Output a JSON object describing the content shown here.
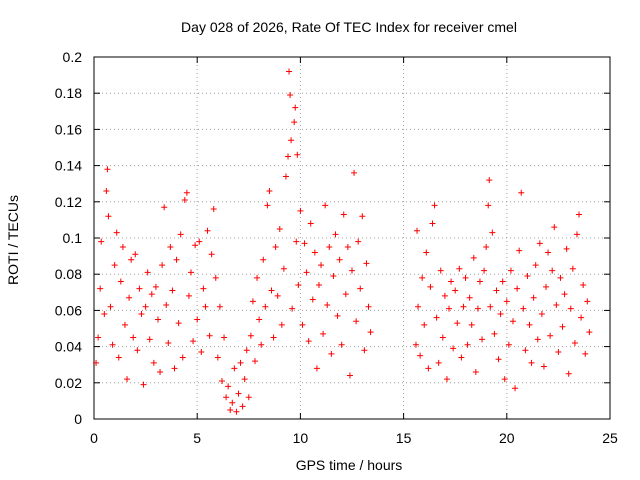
{
  "chart_data": {
    "type": "scatter",
    "title": "Day 028 of 2026, Rate Of TEC Index for receiver cmel",
    "xlabel": "GPS time / hours",
    "ylabel": "ROTI / TECUs",
    "xlim": [
      0,
      25
    ],
    "ylim": [
      0,
      0.2
    ],
    "x_ticks": [
      0,
      5,
      10,
      15,
      20,
      25
    ],
    "y_ticks": [
      0,
      0.02,
      0.04,
      0.06,
      0.08,
      0.1,
      0.12,
      0.14,
      0.16,
      0.18,
      0.2
    ],
    "x_tick_labels": [
      "0",
      "5",
      "10",
      "15",
      "20",
      "25"
    ],
    "y_tick_labels": [
      "0",
      "0.02",
      "0.04",
      "0.06",
      "0.08",
      "0.1",
      "0.12",
      "0.14",
      "0.16",
      "0.18",
      "0.2"
    ],
    "grid": true,
    "marker": "+",
    "series": [
      {
        "name": "ROTI",
        "color": "#ff0000",
        "note": "dense scatter; data gap from ~13.5 h to ~15.5 h",
        "points": [
          [
            0.1,
            0.031
          ],
          [
            0.2,
            0.045
          ],
          [
            0.3,
            0.072
          ],
          [
            0.35,
            0.098
          ],
          [
            0.5,
            0.058
          ],
          [
            0.6,
            0.126
          ],
          [
            0.65,
            0.138
          ],
          [
            0.7,
            0.112
          ],
          [
            0.8,
            0.062
          ],
          [
            0.9,
            0.041
          ],
          [
            1.0,
            0.085
          ],
          [
            1.1,
            0.103
          ],
          [
            1.2,
            0.034
          ],
          [
            1.3,
            0.076
          ],
          [
            1.4,
            0.095
          ],
          [
            1.5,
            0.052
          ],
          [
            1.6,
            0.022
          ],
          [
            1.7,
            0.067
          ],
          [
            1.8,
            0.088
          ],
          [
            1.9,
            0.045
          ],
          [
            2.0,
            0.091
          ],
          [
            2.1,
            0.038
          ],
          [
            2.2,
            0.072
          ],
          [
            2.3,
            0.058
          ],
          [
            2.4,
            0.019
          ],
          [
            2.5,
            0.062
          ],
          [
            2.6,
            0.081
          ],
          [
            2.7,
            0.044
          ],
          [
            2.8,
            0.069
          ],
          [
            2.9,
            0.031
          ],
          [
            3.0,
            0.073
          ],
          [
            3.1,
            0.055
          ],
          [
            3.2,
            0.026
          ],
          [
            3.3,
            0.085
          ],
          [
            3.4,
            0.117
          ],
          [
            3.5,
            0.063
          ],
          [
            3.6,
            0.042
          ],
          [
            3.7,
            0.095
          ],
          [
            3.8,
            0.071
          ],
          [
            3.9,
            0.028
          ],
          [
            4.0,
            0.088
          ],
          [
            4.1,
            0.053
          ],
          [
            4.2,
            0.102
          ],
          [
            4.3,
            0.034
          ],
          [
            4.4,
            0.121
          ],
          [
            4.5,
            0.125
          ],
          [
            4.6,
            0.068
          ],
          [
            4.7,
            0.081
          ],
          [
            4.8,
            0.043
          ],
          [
            4.9,
            0.096
          ],
          [
            5.0,
            0.055
          ],
          [
            5.1,
            0.098
          ],
          [
            5.2,
            0.037
          ],
          [
            5.3,
            0.072
          ],
          [
            5.4,
            0.062
          ],
          [
            5.5,
            0.104
          ],
          [
            5.6,
            0.046
          ],
          [
            5.7,
            0.091
          ],
          [
            5.8,
            0.116
          ],
          [
            5.9,
            0.078
          ],
          [
            6.0,
            0.034
          ],
          [
            6.1,
            0.062
          ],
          [
            6.2,
            0.021
          ],
          [
            6.3,
            0.045
          ],
          [
            6.4,
            0.012
          ],
          [
            6.5,
            0.018
          ],
          [
            6.6,
            0.005
          ],
          [
            6.7,
            0.009
          ],
          [
            6.8,
            0.028
          ],
          [
            6.9,
            0.004
          ],
          [
            7.0,
            0.014
          ],
          [
            7.1,
            0.031
          ],
          [
            7.2,
            0.007
          ],
          [
            7.3,
            0.022
          ],
          [
            7.4,
            0.038
          ],
          [
            7.5,
            0.012
          ],
          [
            7.6,
            0.046
          ],
          [
            7.7,
            0.065
          ],
          [
            7.8,
            0.032
          ],
          [
            7.9,
            0.078
          ],
          [
            8.0,
            0.055
          ],
          [
            8.1,
            0.041
          ],
          [
            8.2,
            0.088
          ],
          [
            8.3,
            0.062
          ],
          [
            8.4,
            0.118
          ],
          [
            8.5,
            0.126
          ],
          [
            8.6,
            0.071
          ],
          [
            8.7,
            0.045
          ],
          [
            8.8,
            0.095
          ],
          [
            8.9,
            0.068
          ],
          [
            9.0,
            0.105
          ],
          [
            9.1,
            0.052
          ],
          [
            9.2,
            0.083
          ],
          [
            9.3,
            0.134
          ],
          [
            9.4,
            0.145
          ],
          [
            9.45,
            0.192
          ],
          [
            9.5,
            0.179
          ],
          [
            9.55,
            0.154
          ],
          [
            9.6,
            0.061
          ],
          [
            9.7,
            0.164
          ],
          [
            9.75,
            0.172
          ],
          [
            9.8,
            0.098
          ],
          [
            9.85,
            0.146
          ],
          [
            9.9,
            0.074
          ],
          [
            10.0,
            0.115
          ],
          [
            10.1,
            0.052
          ],
          [
            10.2,
            0.097
          ],
          [
            10.3,
            0.081
          ],
          [
            10.4,
            0.043
          ],
          [
            10.5,
            0.108
          ],
          [
            10.6,
            0.066
          ],
          [
            10.7,
            0.092
          ],
          [
            10.8,
            0.028
          ],
          [
            10.9,
            0.074
          ],
          [
            11.0,
            0.085
          ],
          [
            11.1,
            0.047
          ],
          [
            11.2,
            0.118
          ],
          [
            11.3,
            0.063
          ],
          [
            11.4,
            0.095
          ],
          [
            11.5,
            0.036
          ],
          [
            11.6,
            0.079
          ],
          [
            11.7,
            0.102
          ],
          [
            11.8,
            0.057
          ],
          [
            11.9,
            0.088
          ],
          [
            12.0,
            0.041
          ],
          [
            12.1,
            0.113
          ],
          [
            12.2,
            0.069
          ],
          [
            12.3,
            0.095
          ],
          [
            12.4,
            0.024
          ],
          [
            12.5,
            0.082
          ],
          [
            12.6,
            0.136
          ],
          [
            12.7,
            0.054
          ],
          [
            12.8,
            0.098
          ],
          [
            12.9,
            0.072
          ],
          [
            13.0,
            0.112
          ],
          [
            13.1,
            0.038
          ],
          [
            13.2,
            0.086
          ],
          [
            13.3,
            0.062
          ],
          [
            13.4,
            0.048
          ],
          [
            15.6,
            0.041
          ],
          [
            15.65,
            0.104
          ],
          [
            15.7,
            0.062
          ],
          [
            15.8,
            0.035
          ],
          [
            15.9,
            0.078
          ],
          [
            16.0,
            0.052
          ],
          [
            16.1,
            0.092
          ],
          [
            16.2,
            0.028
          ],
          [
            16.3,
            0.073
          ],
          [
            16.4,
            0.108
          ],
          [
            16.5,
            0.118
          ],
          [
            16.6,
            0.056
          ],
          [
            16.7,
            0.031
          ],
          [
            16.8,
            0.082
          ],
          [
            16.9,
            0.045
          ],
          [
            17.0,
            0.068
          ],
          [
            17.1,
            0.022
          ],
          [
            17.2,
            0.061
          ],
          [
            17.3,
            0.076
          ],
          [
            17.4,
            0.039
          ],
          [
            17.5,
            0.071
          ],
          [
            17.6,
            0.053
          ],
          [
            17.7,
            0.083
          ],
          [
            17.8,
            0.034
          ],
          [
            17.9,
            0.062
          ],
          [
            18.0,
            0.078
          ],
          [
            18.1,
            0.041
          ],
          [
            18.2,
            0.067
          ],
          [
            18.3,
            0.052
          ],
          [
            18.4,
            0.089
          ],
          [
            18.5,
            0.026
          ],
          [
            18.6,
            0.061
          ],
          [
            18.7,
            0.076
          ],
          [
            18.8,
            0.044
          ],
          [
            18.9,
            0.082
          ],
          [
            19.0,
            0.095
          ],
          [
            19.1,
            0.118
          ],
          [
            19.15,
            0.132
          ],
          [
            19.2,
            0.062
          ],
          [
            19.3,
            0.103
          ],
          [
            19.4,
            0.047
          ],
          [
            19.5,
            0.071
          ],
          [
            19.6,
            0.033
          ],
          [
            19.7,
            0.058
          ],
          [
            19.8,
            0.076
          ],
          [
            19.9,
            0.022
          ],
          [
            20.0,
            0.065
          ],
          [
            20.1,
            0.041
          ],
          [
            20.2,
            0.082
          ],
          [
            20.3,
            0.054
          ],
          [
            20.4,
            0.017
          ],
          [
            20.5,
            0.072
          ],
          [
            20.6,
            0.093
          ],
          [
            20.7,
            0.125
          ],
          [
            20.8,
            0.061
          ],
          [
            20.9,
            0.038
          ],
          [
            21.0,
            0.079
          ],
          [
            21.1,
            0.052
          ],
          [
            21.2,
            0.031
          ],
          [
            21.3,
            0.067
          ],
          [
            21.4,
            0.085
          ],
          [
            21.5,
            0.044
          ],
          [
            21.6,
            0.097
          ],
          [
            21.7,
            0.058
          ],
          [
            21.8,
            0.029
          ],
          [
            21.9,
            0.073
          ],
          [
            22.0,
            0.092
          ],
          [
            22.1,
            0.046
          ],
          [
            22.2,
            0.082
          ],
          [
            22.3,
            0.106
          ],
          [
            22.4,
            0.063
          ],
          [
            22.5,
            0.037
          ],
          [
            22.6,
            0.078
          ],
          [
            22.7,
            0.051
          ],
          [
            22.8,
            0.069
          ],
          [
            22.9,
            0.094
          ],
          [
            23.0,
            0.025
          ],
          [
            23.1,
            0.061
          ],
          [
            23.2,
            0.083
          ],
          [
            23.3,
            0.042
          ],
          [
            23.4,
            0.102
          ],
          [
            23.5,
            0.113
          ],
          [
            23.6,
            0.056
          ],
          [
            23.7,
            0.074
          ],
          [
            23.8,
            0.036
          ],
          [
            23.9,
            0.065
          ],
          [
            24.0,
            0.048
          ]
        ]
      }
    ]
  }
}
